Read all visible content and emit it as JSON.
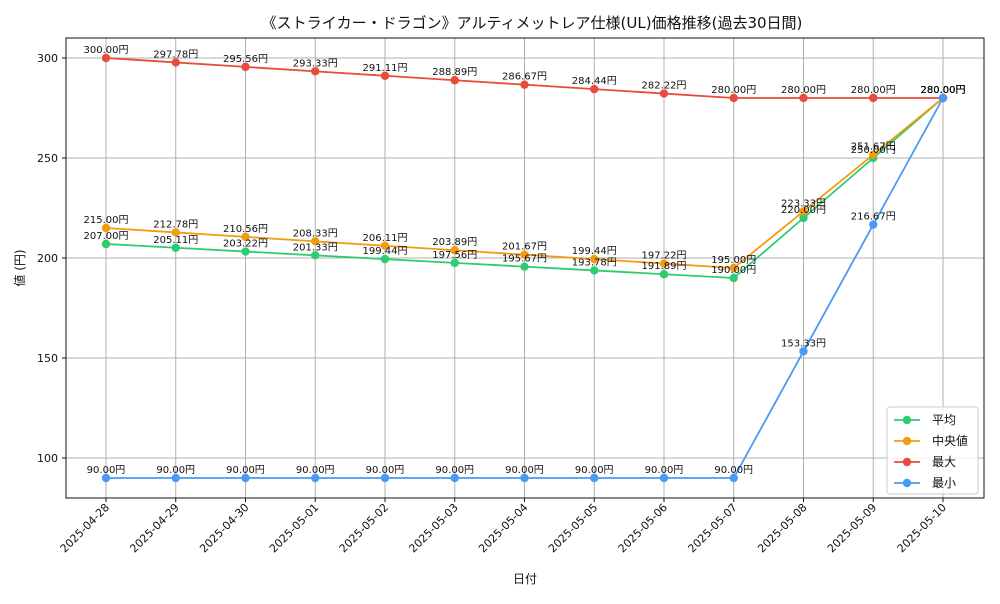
{
  "chart_data": {
    "type": "line",
    "title": "《ストライカー・ドラゴン》アルティメットレア仕様(UL)価格推移(過去30日間)",
    "xlabel": "日付",
    "ylabel": "値 (円)",
    "categories": [
      "2025-04-28",
      "2025-04-29",
      "2025-04-30",
      "2025-05-01",
      "2025-05-02",
      "2025-05-03",
      "2025-05-04",
      "2025-05-05",
      "2025-05-06",
      "2025-05-07",
      "2025-05-08",
      "2025-05-09",
      "2025-05-10"
    ],
    "ylim": [
      80,
      310
    ],
    "y_ticks": [
      100,
      150,
      200,
      250,
      300
    ],
    "grid": true,
    "legend_position": "lower-right",
    "series": [
      {
        "name": "平均",
        "color": "#2ecc71",
        "values": [
          207.0,
          205.11,
          203.22,
          201.33,
          199.44,
          197.56,
          195.67,
          193.78,
          191.89,
          190.0,
          220.0,
          250.0,
          280.0
        ],
        "labels": [
          "207.00円",
          "205.11円",
          "203.22円",
          "201.33円",
          "199.44円",
          "197.56円",
          "195.67円",
          "193.78円",
          "191.89円",
          "190.00円",
          "220.00円",
          "250.00円",
          "280.00円"
        ]
      },
      {
        "name": "中央値",
        "color": "#f39c12",
        "values": [
          215.0,
          212.78,
          210.56,
          208.33,
          206.11,
          203.89,
          201.67,
          199.44,
          197.22,
          195.0,
          223.33,
          251.67,
          280.0
        ],
        "labels": [
          "215.00円",
          "212.78円",
          "210.56円",
          "208.33円",
          "206.11円",
          "203.89円",
          "201.67円",
          "199.44円",
          "197.22円",
          "195.00円",
          "223.33円",
          "251.67円",
          "280.00円"
        ]
      },
      {
        "name": "最大",
        "color": "#e74c3c",
        "values": [
          300.0,
          297.78,
          295.56,
          293.33,
          291.11,
          288.89,
          286.67,
          284.44,
          282.22,
          280.0,
          280.0,
          280.0,
          280.0
        ],
        "labels": [
          "300.00円",
          "297.78円",
          "295.56円",
          "293.33円",
          "291.11円",
          "288.89円",
          "286.67円",
          "284.44円",
          "282.22円",
          "280.00円",
          "280.00円",
          "280.00円",
          "280.00円"
        ]
      },
      {
        "name": "最小",
        "color": "#4a9af5",
        "values": [
          90.0,
          90.0,
          90.0,
          90.0,
          90.0,
          90.0,
          90.0,
          90.0,
          90.0,
          90.0,
          153.33,
          216.67,
          280.0
        ],
        "labels": [
          "90.00円",
          "90.00円",
          "90.00円",
          "90.00円",
          "90.00円",
          "90.00円",
          "90.00円",
          "90.00円",
          "90.00円",
          "90.00円",
          "153.33円",
          "216.67円",
          "280.00円"
        ]
      }
    ]
  }
}
